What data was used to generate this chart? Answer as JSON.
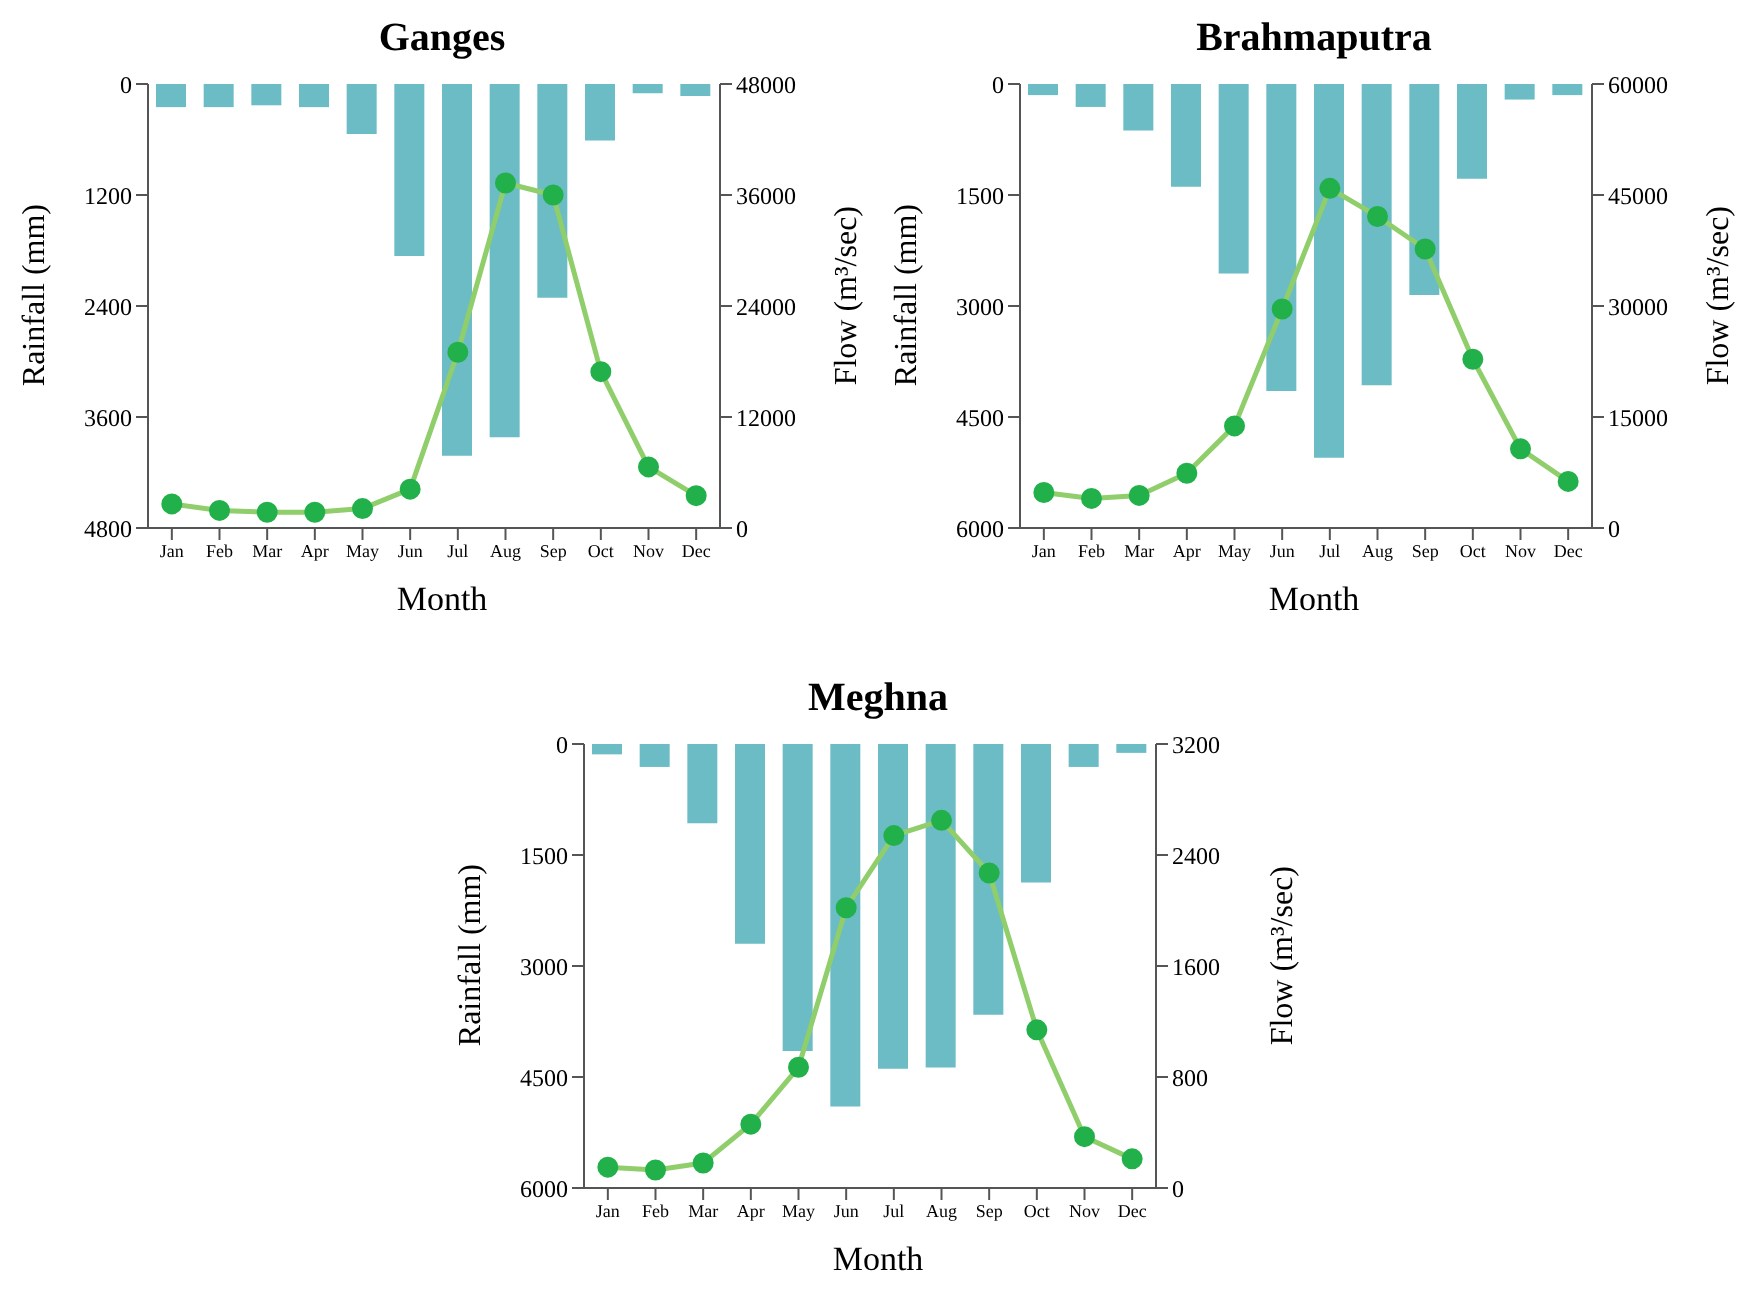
{
  "chart_data": [
    {
      "type": "bar",
      "title": "Ganges",
      "xlabel": "Month",
      "ylabel": "Rainfall (mm)",
      "y2label": "Flow (m³/sec)",
      "categories": [
        "Jan",
        "Feb",
        "Mar",
        "Apr",
        "May",
        "Jun",
        "Jul",
        "Aug",
        "Sep",
        "Oct",
        "Nov",
        "Dec"
      ],
      "ylim": [
        4800,
        0
      ],
      "yticks": [
        0,
        1200,
        2400,
        3600,
        4800
      ],
      "y2lim": [
        0,
        48000
      ],
      "y2ticks": [
        0,
        12000,
        24000,
        36000,
        48000
      ],
      "marker": "circle",
      "series": [
        {
          "color": "#6bbcc4",
          "values": [
            250,
            250,
            230,
            250,
            540,
            1860,
            4020,
            3820,
            2310,
            610,
            100,
            130
          ]
        },
        {
          "type": "line",
          "axis": "y2",
          "color": "#8fce6a",
          "values": [
            2600,
            1900,
            1700,
            1700,
            2100,
            4200,
            19000,
            37300,
            36000,
            16900,
            6600,
            3500
          ]
        }
      ]
    },
    {
      "type": "bar",
      "title": "Brahmaputra",
      "xlabel": "Month",
      "ylabel": "Rainfall (mm)",
      "y2label": "Flow (m³/sec)",
      "categories": [
        "Jan",
        "Feb",
        "Mar",
        "Apr",
        "May",
        "Jun",
        "Jul",
        "Aug",
        "Sep",
        "Oct",
        "Nov",
        "Dec"
      ],
      "ylim": [
        6000,
        0
      ],
      "yticks": [
        0,
        1500,
        3000,
        4500,
        6000
      ],
      "y2lim": [
        0,
        60000
      ],
      "y2ticks": [
        0,
        15000,
        30000,
        45000,
        60000
      ],
      "marker": "circle",
      "series": [
        {
          "color": "#6bbcc4",
          "values": [
            150,
            310,
            630,
            1390,
            2560,
            4150,
            5050,
            4070,
            2850,
            1280,
            210,
            150
          ]
        },
        {
          "type": "line",
          "axis": "y2",
          "color": "#8fce6a",
          "values": [
            4800,
            4000,
            4400,
            7400,
            13800,
            29600,
            45900,
            42100,
            37700,
            22800,
            10700,
            6300
          ]
        }
      ]
    },
    {
      "type": "bar",
      "title": "Meghna",
      "xlabel": "Month",
      "ylabel": "Rainfall (mm)",
      "y2label": "Flow (m³/sec)",
      "categories": [
        "Jan",
        "Feb",
        "Mar",
        "Apr",
        "May",
        "Jun",
        "Jul",
        "Aug",
        "Sep",
        "Oct",
        "Nov",
        "Dec"
      ],
      "ylim": [
        6000,
        0
      ],
      "yticks": [
        0,
        1500,
        3000,
        4500,
        6000
      ],
      "y2lim": [
        0,
        3200
      ],
      "y2ticks": [
        0,
        800,
        1600,
        2400,
        3200
      ],
      "marker": "circle",
      "series": [
        {
          "color": "#6bbcc4",
          "values": [
            140,
            310,
            1070,
            2700,
            4150,
            4900,
            4390,
            4370,
            3660,
            1870,
            310,
            120
          ]
        },
        {
          "type": "line",
          "axis": "y2",
          "color": "#8fce6a",
          "values": [
            150,
            130,
            180,
            460,
            870,
            2020,
            2540,
            2650,
            2270,
            1140,
            370,
            210
          ]
        }
      ]
    }
  ]
}
